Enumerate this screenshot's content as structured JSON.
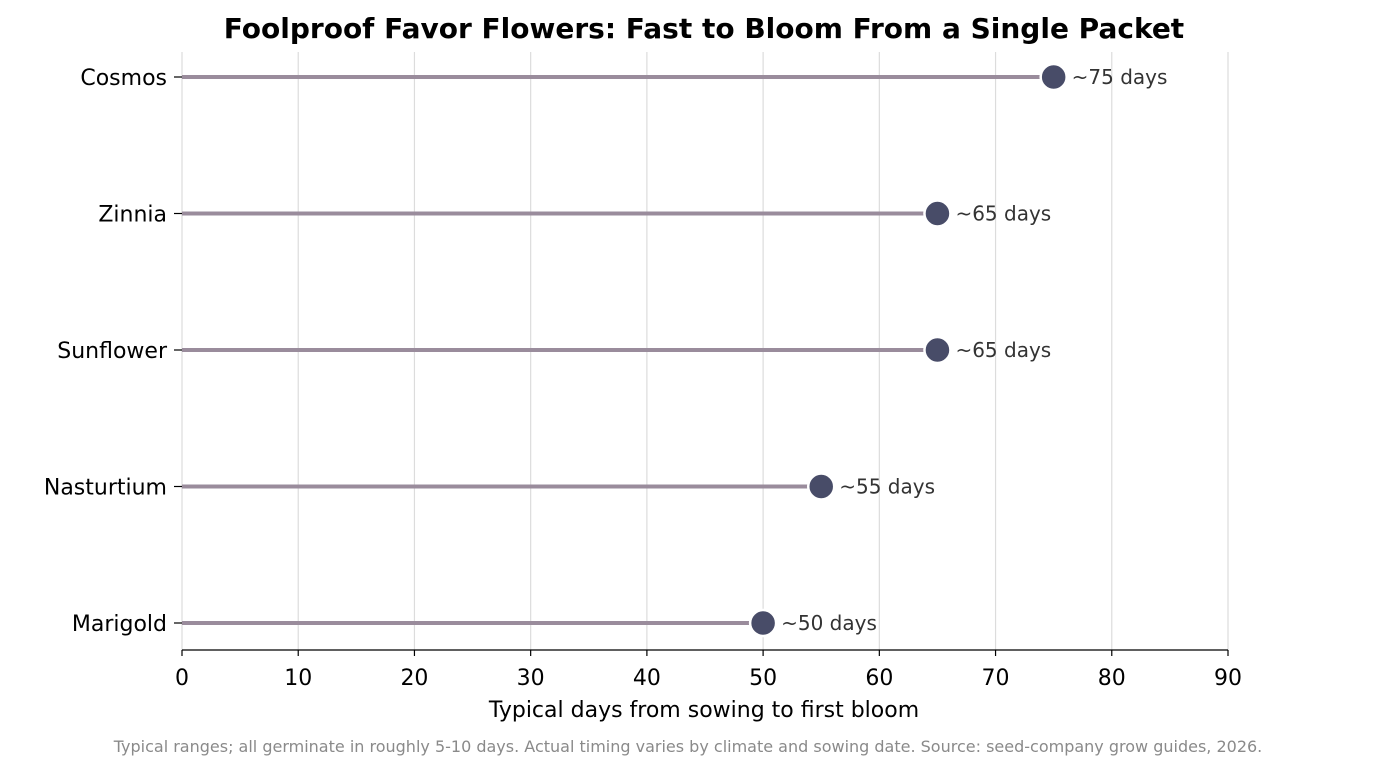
{
  "chart_data": {
    "type": "lollipop",
    "title": "Foolproof Favor Flowers: Fast to Bloom From a Single Packet",
    "xlabel": "Typical days from sowing to first bloom",
    "ylabel": "",
    "xlim": [
      0,
      90
    ],
    "xticks": [
      0,
      10,
      20,
      30,
      40,
      50,
      60,
      70,
      80,
      90
    ],
    "grid": "vertical",
    "categories": [
      "Cosmos",
      "Zinnia",
      "Sunflower",
      "Nasturtium",
      "Marigold"
    ],
    "values": [
      75,
      65,
      65,
      55,
      50
    ],
    "data_labels": [
      "~75 days",
      "~65 days",
      "~65 days",
      "~55 days",
      "~50 days"
    ],
    "colors": {
      "stem": "#9a8c9c",
      "dot": "#484c68",
      "grid": "#dcdcdc",
      "axis": "#000000"
    },
    "footnote": "Typical ranges; all germinate in roughly 5-10 days. Actual timing varies by climate and sowing date. Source: seed-company grow guides, 2026."
  }
}
